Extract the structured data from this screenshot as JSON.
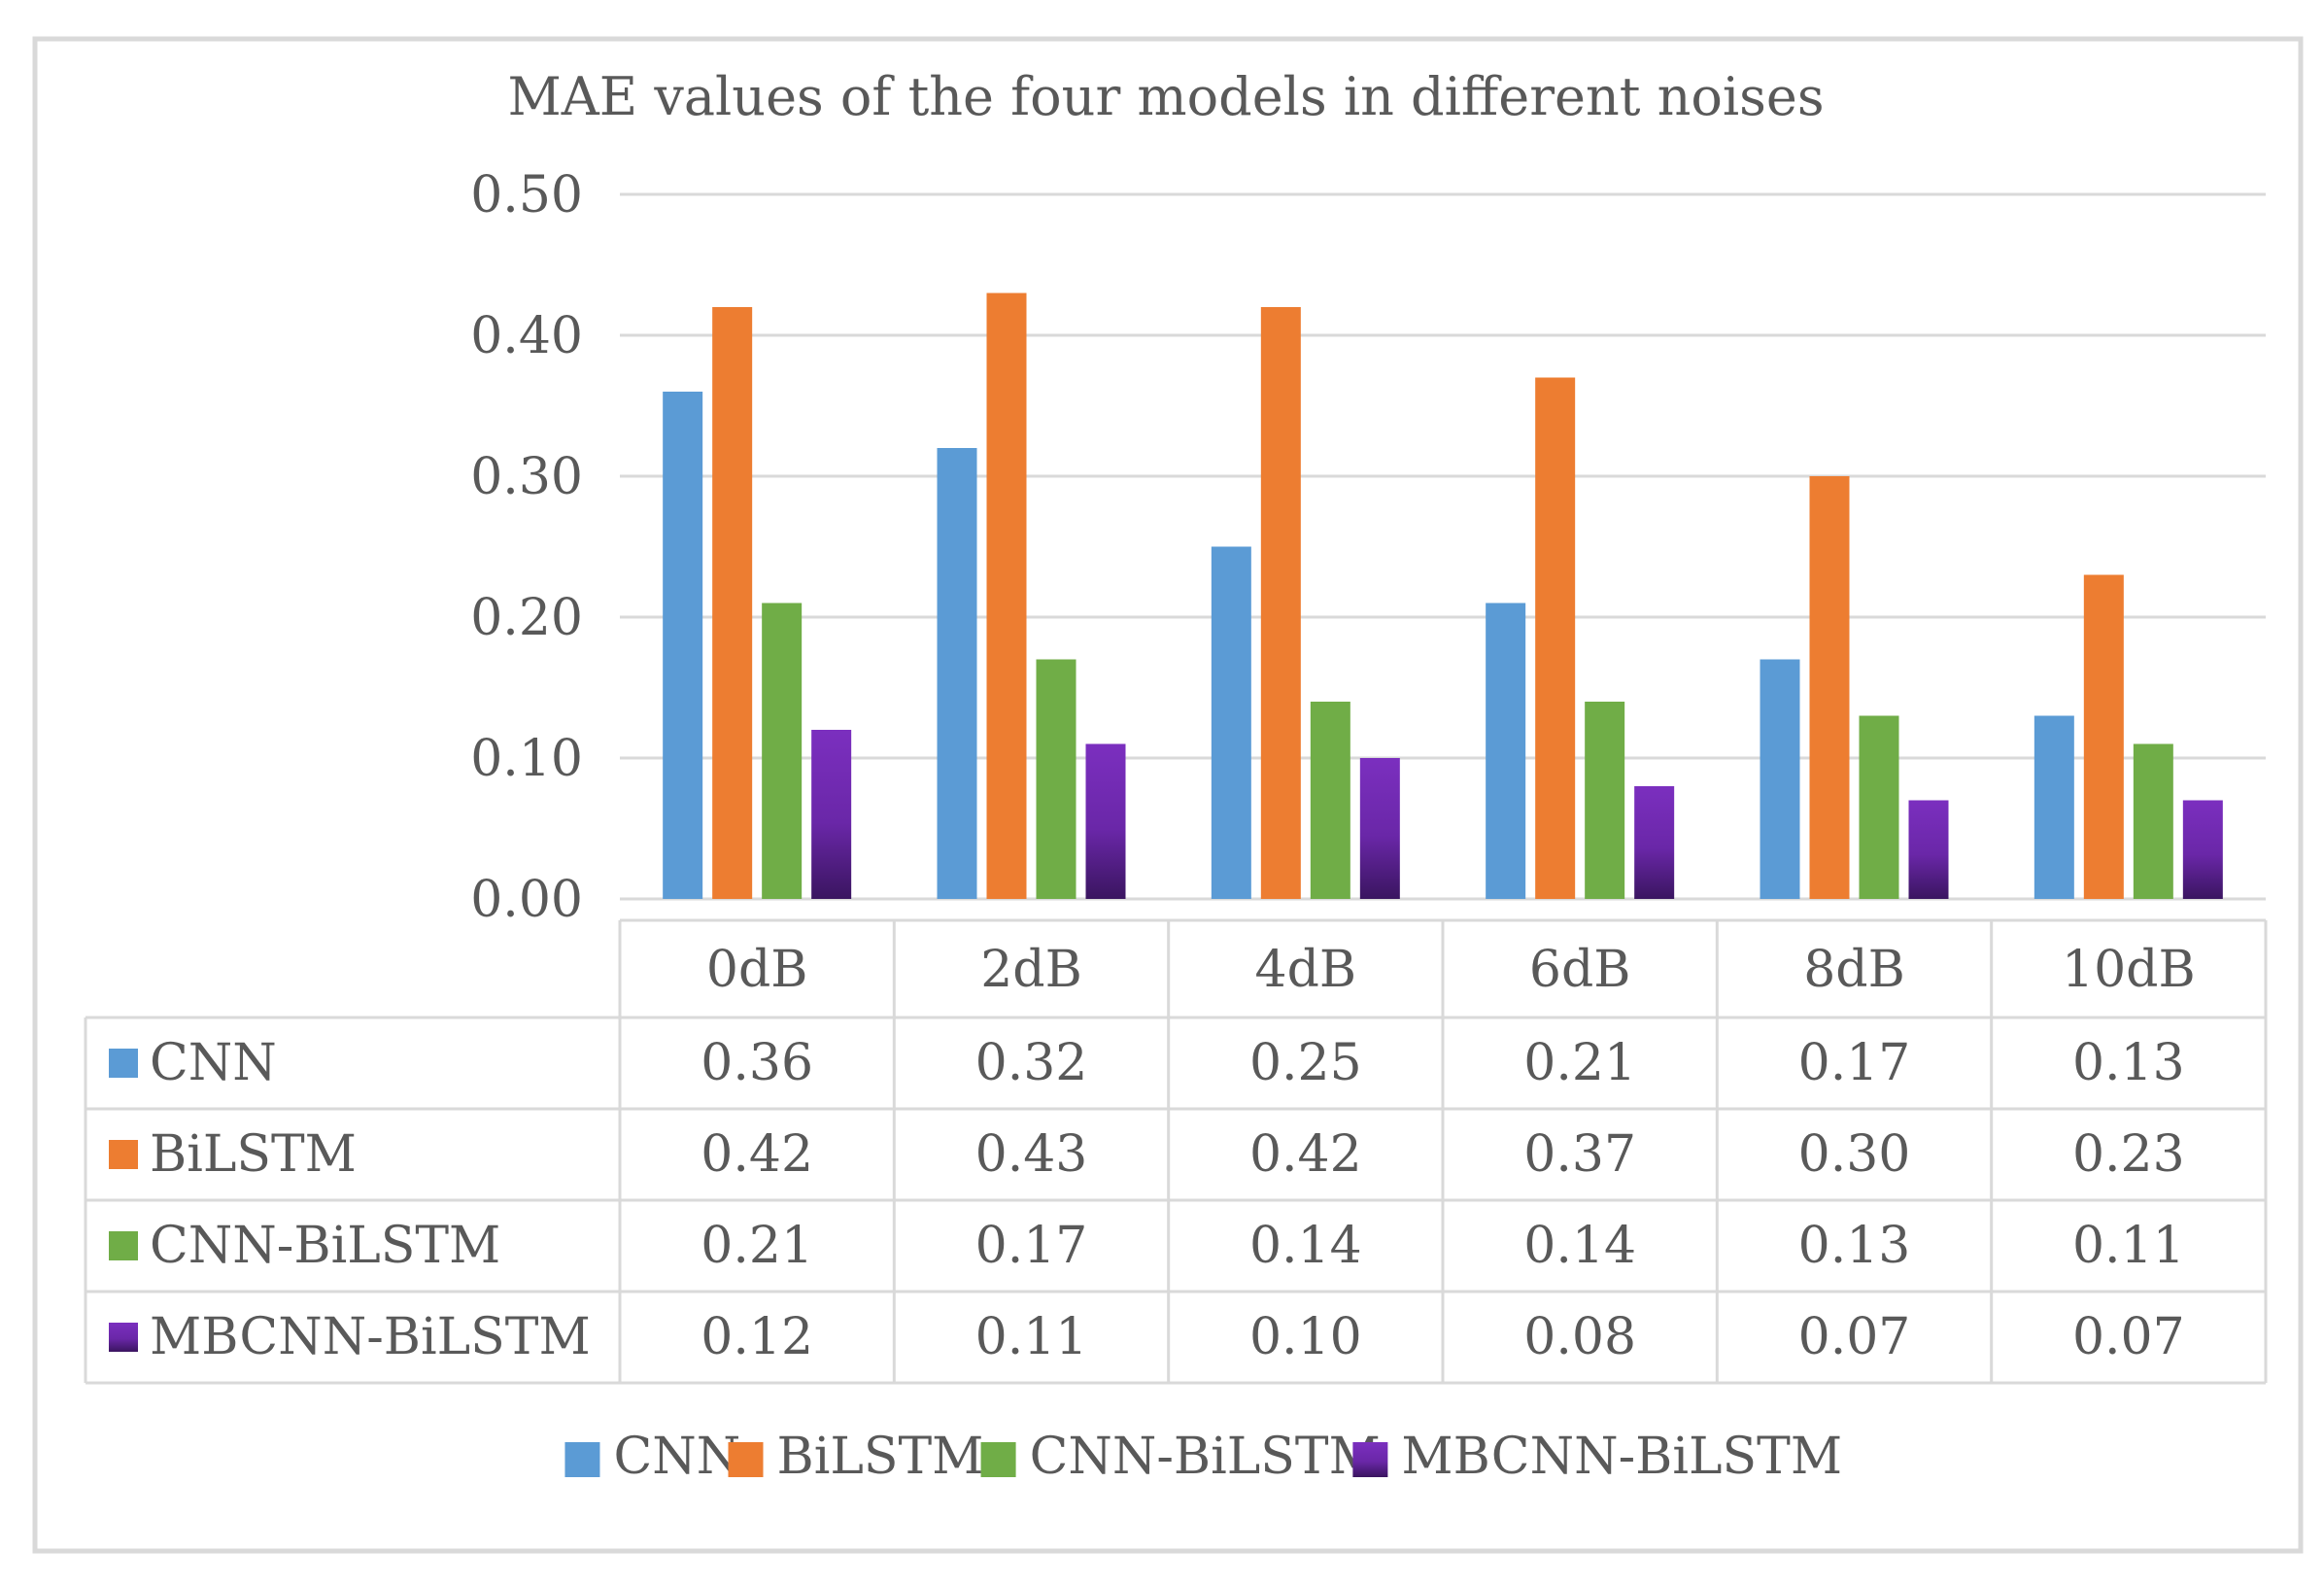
{
  "chart_data": {
    "type": "bar",
    "title": "MAE values of the four models in different noises",
    "categories": [
      "0dB",
      "2dB",
      "4dB",
      "6dB",
      "8dB",
      "10dB"
    ],
    "ylim": [
      0,
      0.5
    ],
    "yticks": [
      "0.00",
      "0.10",
      "0.20",
      "0.30",
      "0.40",
      "0.50"
    ],
    "ytick_values": [
      0,
      0.1,
      0.2,
      0.3,
      0.4,
      0.5
    ],
    "xlabel": "",
    "ylabel": "",
    "grid": true,
    "legend_position": "bottom",
    "data_table": true,
    "series": [
      {
        "name": "CNN",
        "color": "#5B9BD5",
        "values": [
          0.36,
          0.32,
          0.25,
          0.21,
          0.17,
          0.13
        ],
        "labels": [
          "0.36",
          "0.32",
          "0.25",
          "0.21",
          "0.17",
          "0.13"
        ]
      },
      {
        "name": "BiLSTM",
        "color": "#ED7D31",
        "values": [
          0.42,
          0.43,
          0.42,
          0.37,
          0.3,
          0.23
        ],
        "labels": [
          "0.42",
          "0.43",
          "0.42",
          "0.37",
          "0.30",
          "0.23"
        ]
      },
      {
        "name": "CNN-BiLSTM",
        "color": "#70AD47",
        "values": [
          0.21,
          0.17,
          0.14,
          0.14,
          0.13,
          0.11
        ],
        "labels": [
          "0.21",
          "0.17",
          "0.14",
          "0.14",
          "0.13",
          "0.11"
        ]
      },
      {
        "name": "MBCNN-BiLSTM",
        "color": "#7030A0",
        "values": [
          0.12,
          0.11,
          0.1,
          0.08,
          0.07,
          0.07
        ],
        "labels": [
          "0.12",
          "0.11",
          "0.10",
          "0.08",
          "0.07",
          "0.07"
        ]
      }
    ]
  }
}
